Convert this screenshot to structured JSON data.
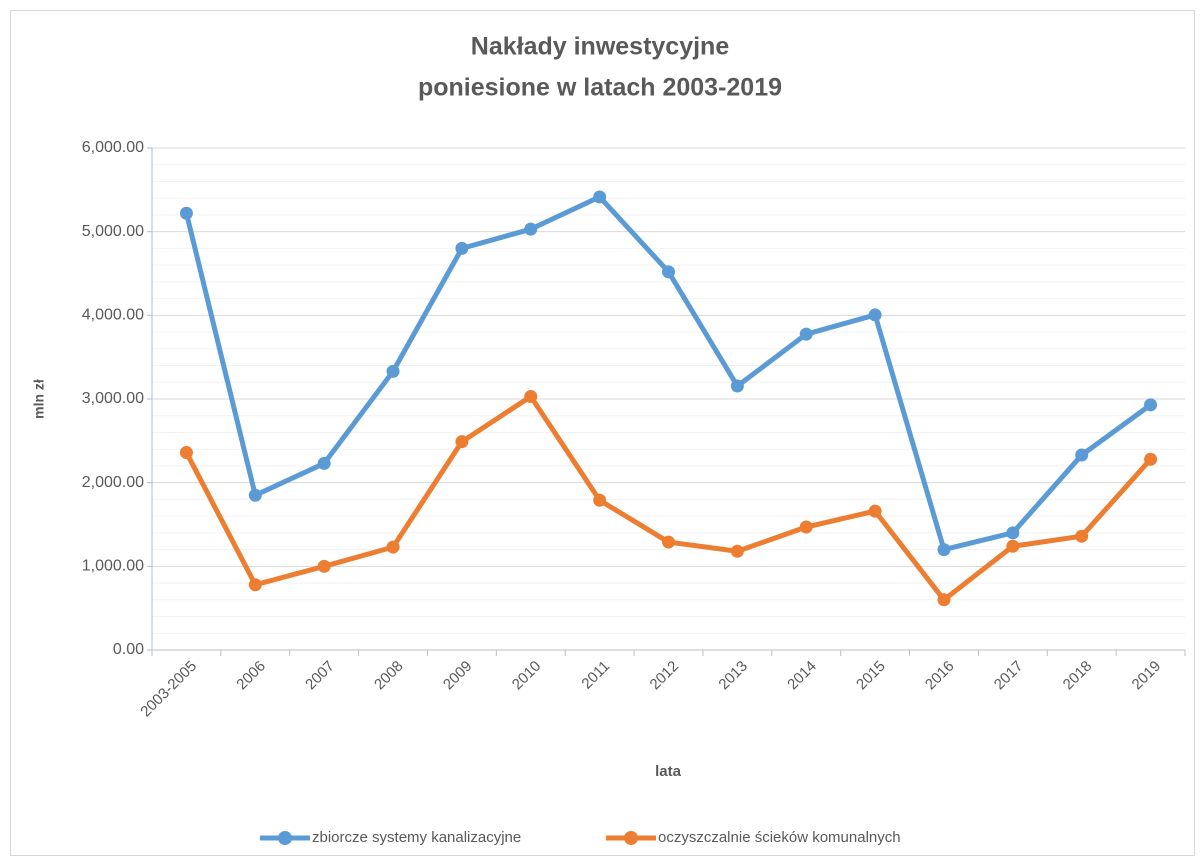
{
  "chart_data": {
    "type": "line",
    "title": [
      "Nakłady inwestycyjne",
      "poniesione w latach 2003-2019"
    ],
    "x_label": "lata",
    "y_label": "mln zł",
    "categories": [
      "2003-2005",
      "2006",
      "2007",
      "2008",
      "2009",
      "2010",
      "2011",
      "2012",
      "2013",
      "2014",
      "2015",
      "2016",
      "2017",
      "2018",
      "2019"
    ],
    "series": [
      {
        "name": "zbiorcze systemy kanalizacyjne",
        "color": "#5b9bd5",
        "values": [
          5220,
          1850,
          2230,
          3330,
          4800,
          5030,
          5415,
          4520,
          3155,
          3775,
          4005,
          1200,
          1400,
          2330,
          2930
        ]
      },
      {
        "name": "oczyszczalnie ścieków komunalnych",
        "color": "#ed7d31",
        "values": [
          2360,
          780,
          1000,
          1230,
          2490,
          3030,
          1790,
          1290,
          1180,
          1470,
          1660,
          600,
          1240,
          1360,
          2280
        ]
      }
    ],
    "ylim": [
      0,
      6000
    ],
    "yticks": [
      {
        "value": 0,
        "label": "0.00"
      },
      {
        "value": 1000,
        "label": "1,000.00"
      },
      {
        "value": 2000,
        "label": "2,000.00"
      },
      {
        "value": 3000,
        "label": "3,000.00"
      },
      {
        "value": 4000,
        "label": "4,000.00"
      },
      {
        "value": 5000,
        "label": "5,000.00"
      },
      {
        "value": 6000,
        "label": "6,000.00"
      }
    ],
    "grid": true,
    "minor_grid": true,
    "legend": "bottom"
  }
}
